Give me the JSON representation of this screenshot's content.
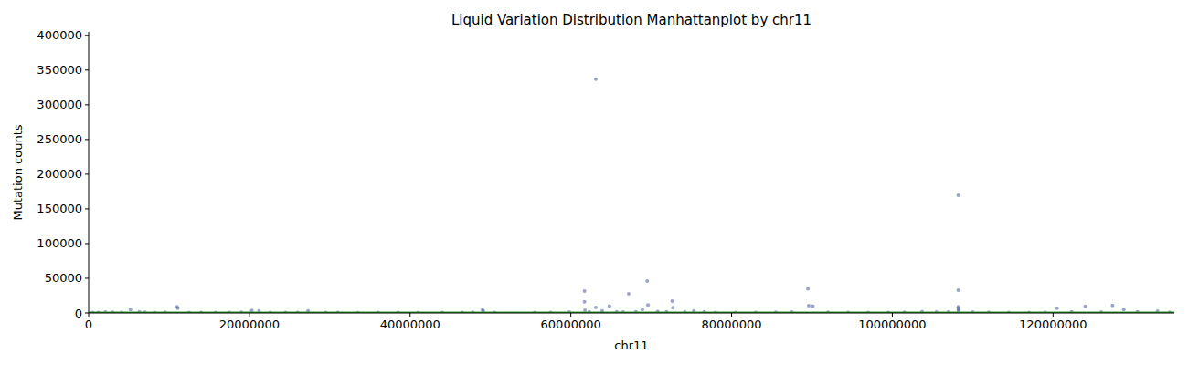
{
  "chart_data": {
    "type": "scatter",
    "title": "Liquid Variation Distribution Manhattanplot by chr11",
    "x_label": "chr11",
    "y_label": "Mutation counts",
    "xlim": [
      0,
      135086622
    ],
    "ylim": [
      0,
      405000
    ],
    "xticks": [
      0,
      20000000,
      40000000,
      60000000,
      80000000,
      100000000,
      120000000
    ],
    "yticks": [
      0,
      50000,
      100000,
      150000,
      200000,
      250000,
      300000,
      350000,
      400000
    ],
    "grid": false,
    "series": [
      {
        "type": "scatter",
        "marker": "circle",
        "color": "#5a68a8",
        "x": [
          500000,
          1200000,
          2100000,
          3000000,
          4100000,
          5200000,
          6300000,
          7000000,
          8200000,
          9500000,
          11000000,
          11100000,
          12500000,
          14000000,
          15800000,
          17500000,
          19000000,
          20300000,
          21200000,
          22600000,
          24500000,
          26000000,
          27300000,
          29500000,
          31000000,
          33500000,
          36000000,
          38500000,
          41000000,
          44000000,
          46500000,
          47800000,
          49000000,
          49100000,
          50500000,
          55500000,
          57500000,
          59800000,
          61700000,
          61700000,
          61750000,
          62300000,
          63100000,
          63100000,
          63900000,
          64800000,
          65700000,
          66500000,
          67200000,
          68100000,
          68900000,
          69500000,
          69600000,
          70800000,
          71900000,
          72600000,
          72700000,
          74200000,
          75300000,
          76600000,
          78000000,
          80500000,
          83000000,
          85500000,
          87500000,
          89500000,
          89600000,
          90100000,
          92000000,
          94500000,
          97000000,
          99500000,
          101500000,
          103700000,
          105500000,
          107000000,
          108200000,
          108200000,
          108210000,
          108220000,
          108230000,
          108240000,
          110000000,
          112000000,
          114500000,
          117000000,
          119000000,
          120500000,
          122300000,
          124000000,
          126000000,
          127400000,
          128800000,
          130500000,
          133000000,
          134500000
        ],
        "values": [
          800,
          600,
          1200,
          900,
          700,
          5000,
          1500,
          1000,
          600,
          900,
          9000,
          7000,
          800,
          500,
          700,
          600,
          900,
          3500,
          3000,
          700,
          500,
          800,
          3000,
          600,
          500,
          400,
          600,
          500,
          400,
          600,
          700,
          900,
          4500,
          3000,
          800,
          600,
          700,
          1200,
          31500,
          16000,
          4000,
          1500,
          337000,
          8000,
          3000,
          10000,
          1800,
          1400,
          27500,
          1600,
          5000,
          46000,
          11500,
          2000,
          1500,
          17000,
          7500,
          1200,
          3000,
          1500,
          800,
          700,
          600,
          900,
          1200,
          35000,
          10500,
          10000,
          900,
          700,
          600,
          800,
          1000,
          2000,
          1200,
          1500,
          169700,
          33000,
          9000,
          7000,
          5000,
          3000,
          1200,
          900,
          700,
          800,
          1000,
          7000,
          1500,
          9500,
          1200,
          11000,
          5000,
          1500,
          2500,
          900
        ]
      },
      {
        "type": "line",
        "line_style": "solid",
        "color": "#2ca02c",
        "x": [
          0,
          135086622
        ],
        "values": [
          1000,
          1000
        ]
      }
    ]
  }
}
